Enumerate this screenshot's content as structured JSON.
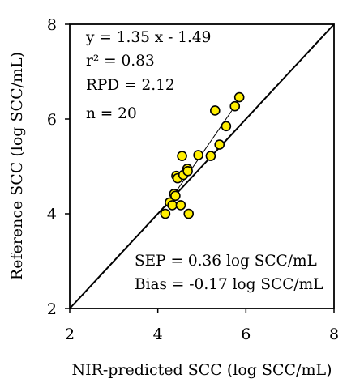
{
  "chart_data": {
    "type": "scatter",
    "xlabel": "NIR-predicted SCC (log SCC/mL)",
    "ylabel": "Reference SCC (log SCC/mL)",
    "xlim": [
      2,
      8
    ],
    "ylim": [
      2,
      8
    ],
    "x_ticks": [
      "2",
      "4",
      "6",
      "8"
    ],
    "y_ticks": [
      "2",
      "4",
      "6",
      "8"
    ],
    "grid": false,
    "reference_line": "1:1",
    "regression": {
      "slope": 1.35,
      "intercept": -1.49
    },
    "annotations": {
      "equation": "y = 1.35 x - 1.49",
      "r2": "r² = 0.83",
      "rpd": "RPD = 2.12",
      "n": "n = 20",
      "sep": "SEP = 0.36 log SCC/mL",
      "bias": "Bias = -0.17 log SCC/mL"
    },
    "point_color": "#ffee00",
    "series": [
      {
        "x": [
          4.17,
          4.27,
          4.33,
          4.37,
          4.4,
          4.42,
          4.45,
          4.52,
          4.55,
          4.58,
          4.67,
          4.7,
          4.92,
          5.2,
          5.3,
          5.4,
          5.55,
          5.75,
          5.85,
          4.68
        ],
        "y": [
          4.0,
          4.24,
          4.18,
          4.42,
          4.38,
          4.8,
          4.75,
          4.18,
          5.22,
          4.82,
          4.95,
          4.0,
          5.24,
          5.22,
          6.18,
          5.46,
          5.85,
          6.27,
          6.46,
          4.9
        ]
      }
    ]
  }
}
